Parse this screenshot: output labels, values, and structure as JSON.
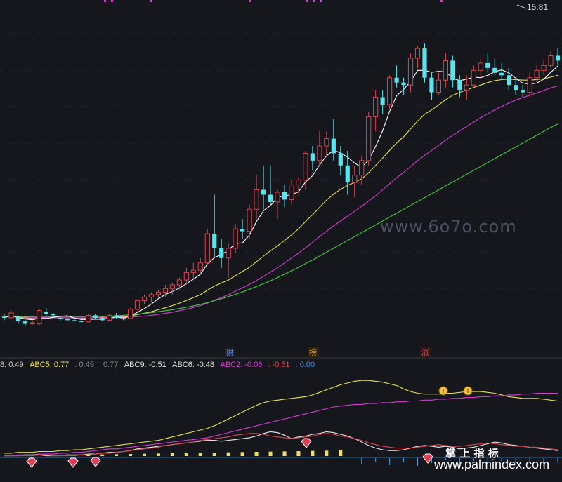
{
  "chart_data": [
    {
      "type": "candlestick",
      "title": "",
      "price_label": "15.81",
      "ylim": [
        3.0,
        16.3
      ],
      "colors": {
        "up": "#e0424d",
        "down": "#55e6f0",
        "ma5": "#ffffff",
        "ma10": "#e8e342",
        "ma20": "#d63bd6",
        "ma60": "#3dcf3d"
      },
      "ohlc": [
        [
          3.6,
          3.7,
          3.45,
          3.55
        ],
        [
          3.55,
          3.85,
          3.5,
          3.75
        ],
        [
          3.6,
          3.65,
          3.3,
          3.4
        ],
        [
          3.4,
          3.5,
          3.2,
          3.3
        ],
        [
          3.3,
          3.45,
          3.25,
          3.35
        ],
        [
          3.3,
          3.9,
          3.25,
          3.85
        ],
        [
          3.8,
          3.95,
          3.6,
          3.7
        ],
        [
          3.7,
          3.75,
          3.55,
          3.65
        ],
        [
          3.55,
          3.6,
          3.4,
          3.5
        ],
        [
          3.5,
          3.55,
          3.4,
          3.45
        ],
        [
          3.45,
          3.5,
          3.35,
          3.42
        ],
        [
          3.42,
          3.48,
          3.32,
          3.38
        ],
        [
          3.38,
          3.7,
          3.35,
          3.65
        ],
        [
          3.65,
          3.7,
          3.5,
          3.55
        ],
        [
          3.55,
          3.6,
          3.42,
          3.45
        ],
        [
          3.45,
          3.7,
          3.4,
          3.65
        ],
        [
          3.65,
          3.75,
          3.5,
          3.55
        ],
        [
          3.55,
          3.6,
          3.45,
          3.52
        ],
        [
          3.52,
          3.95,
          3.5,
          3.9
        ],
        [
          3.9,
          4.3,
          3.85,
          4.25
        ],
        [
          4.25,
          4.5,
          4.1,
          4.4
        ],
        [
          4.4,
          4.6,
          4.2,
          4.5
        ],
        [
          4.5,
          4.7,
          4.35,
          4.6
        ],
        [
          4.6,
          4.9,
          4.4,
          4.75
        ],
        [
          4.75,
          5.0,
          4.5,
          4.9
        ],
        [
          4.9,
          5.2,
          4.7,
          5.1
        ],
        [
          5.1,
          5.6,
          4.9,
          5.4
        ],
        [
          5.4,
          5.8,
          5.1,
          5.5
        ],
        [
          5.5,
          6.0,
          5.3,
          5.8
        ],
        [
          5.8,
          7.2,
          5.7,
          7.0
        ],
        [
          7.0,
          8.6,
          6.0,
          6.4
        ],
        [
          6.4,
          6.8,
          5.6,
          6.0
        ],
        [
          6.0,
          6.6,
          5.2,
          6.4
        ],
        [
          6.4,
          7.4,
          6.2,
          7.2
        ],
        [
          7.2,
          7.6,
          6.8,
          7.1
        ],
        [
          7.1,
          8.2,
          6.8,
          8.0
        ],
        [
          8.0,
          9.4,
          7.6,
          8.8
        ],
        [
          8.8,
          9.8,
          8.0,
          8.6
        ],
        [
          8.6,
          9.8,
          8.2,
          8.3
        ],
        [
          8.3,
          8.8,
          7.6,
          8.7
        ],
        [
          8.7,
          9.0,
          8.1,
          8.4
        ],
        [
          8.4,
          9.2,
          8.2,
          9.0
        ],
        [
          9.0,
          9.3,
          8.6,
          9.2
        ],
        [
          9.2,
          10.4,
          8.8,
          10.3
        ],
        [
          10.3,
          10.6,
          9.6,
          10.0
        ],
        [
          10.0,
          11.2,
          9.8,
          10.6
        ],
        [
          10.6,
          11.2,
          10.2,
          10.9
        ],
        [
          10.9,
          11.7,
          10.0,
          10.3
        ],
        [
          10.3,
          10.6,
          9.4,
          9.8
        ],
        [
          9.8,
          10.4,
          8.6,
          9.1
        ],
        [
          9.1,
          9.8,
          8.5,
          9.4
        ],
        [
          9.4,
          10.2,
          9.0,
          10.0
        ],
        [
          10.0,
          12.0,
          9.8,
          11.8
        ],
        [
          11.8,
          12.9,
          11.2,
          12.6
        ],
        [
          12.6,
          12.9,
          11.9,
          12.3
        ],
        [
          12.3,
          13.5,
          12.1,
          13.4
        ],
        [
          13.4,
          13.9,
          13.0,
          13.2
        ],
        [
          13.2,
          13.4,
          12.7,
          13.1
        ],
        [
          13.1,
          14.4,
          12.8,
          14.2
        ],
        [
          14.2,
          14.7,
          13.8,
          14.6
        ],
        [
          14.6,
          14.8,
          13.2,
          13.4
        ],
        [
          13.4,
          13.6,
          12.5,
          12.8
        ],
        [
          12.8,
          13.6,
          12.7,
          13.3
        ],
        [
          13.3,
          14.4,
          13.0,
          14.1
        ],
        [
          14.1,
          14.3,
          13.0,
          13.3
        ],
        [
          13.3,
          13.5,
          12.6,
          12.9
        ],
        [
          12.9,
          13.5,
          12.5,
          13.1
        ],
        [
          13.1,
          13.9,
          13.0,
          13.7
        ],
        [
          13.7,
          14.2,
          13.4,
          14.0
        ],
        [
          14.0,
          14.4,
          13.6,
          13.8
        ],
        [
          13.8,
          14.2,
          13.5,
          13.6
        ],
        [
          13.6,
          14.0,
          13.3,
          13.5
        ],
        [
          13.5,
          13.8,
          12.9,
          13.1
        ],
        [
          13.1,
          13.3,
          12.7,
          12.9
        ],
        [
          12.9,
          13.1,
          12.6,
          12.8
        ],
        [
          12.8,
          13.6,
          12.6,
          13.4
        ],
        [
          13.4,
          13.9,
          13.2,
          13.7
        ],
        [
          13.7,
          14.1,
          13.5,
          13.9
        ],
        [
          13.9,
          14.5,
          13.8,
          14.3
        ],
        [
          14.3,
          14.6,
          13.9,
          14.1
        ]
      ],
      "ma_series": [
        {
          "key": "ma10",
          "values": [
            3.6,
            3.6,
            3.58,
            3.55,
            3.52,
            3.52,
            3.54,
            3.55,
            3.55,
            3.55,
            3.54,
            3.53,
            3.54,
            3.55,
            3.56,
            3.57,
            3.58,
            3.6,
            3.63,
            3.68,
            3.74,
            3.8,
            3.88,
            3.96,
            4.05,
            4.15,
            4.26,
            4.38,
            4.5,
            4.68,
            4.85,
            4.98,
            5.1,
            5.28,
            5.45,
            5.62,
            5.85,
            6.08,
            6.3,
            6.5,
            6.72,
            6.95,
            7.2,
            7.5,
            7.78,
            8.08,
            8.38,
            8.62,
            8.82,
            8.98,
            9.1,
            9.25,
            9.5,
            9.8,
            10.1,
            10.42,
            10.72,
            10.98,
            11.3,
            11.62,
            11.9,
            12.08,
            12.28,
            12.5,
            12.68,
            12.8,
            12.9,
            13.0,
            13.1,
            13.2,
            13.28,
            13.32,
            13.34,
            13.32,
            13.3,
            13.3,
            13.32,
            13.36,
            13.42,
            13.5
          ]
        },
        {
          "key": "ma20",
          "values": [
            3.6,
            3.6,
            3.59,
            3.58,
            3.57,
            3.56,
            3.56,
            3.55,
            3.55,
            3.55,
            3.55,
            3.55,
            3.55,
            3.55,
            3.55,
            3.56,
            3.56,
            3.57,
            3.58,
            3.6,
            3.62,
            3.65,
            3.69,
            3.73,
            3.78,
            3.84,
            3.9,
            3.97,
            4.05,
            4.15,
            4.27,
            4.38,
            4.5,
            4.64,
            4.78,
            4.92,
            5.08,
            5.25,
            5.42,
            5.6,
            5.8,
            6.0,
            6.2,
            6.42,
            6.65,
            6.88,
            7.1,
            7.32,
            7.52,
            7.72,
            7.92,
            8.12,
            8.34,
            8.56,
            8.8,
            9.05,
            9.3,
            9.52,
            9.75,
            10.0,
            10.22,
            10.42,
            10.62,
            10.84,
            11.04,
            11.22,
            11.4,
            11.58,
            11.76,
            11.92,
            12.08,
            12.22,
            12.36,
            12.48,
            12.58,
            12.68,
            12.78,
            12.88,
            12.98,
            13.06
          ]
        },
        {
          "key": "ma60",
          "values": [
            3.6,
            3.6,
            3.6,
            3.6,
            3.6,
            3.6,
            3.6,
            3.6,
            3.6,
            3.6,
            3.6,
            3.6,
            3.6,
            3.6,
            3.6,
            3.62,
            3.63,
            3.65,
            3.67,
            3.7,
            3.73,
            3.76,
            3.8,
            3.84,
            3.88,
            3.93,
            3.98,
            4.04,
            4.1,
            4.17,
            4.25,
            4.33,
            4.42,
            4.51,
            4.61,
            4.72,
            4.83,
            4.95,
            5.07,
            5.2,
            5.34,
            5.48,
            5.62,
            5.77,
            5.92,
            6.08,
            6.24,
            6.4,
            6.56,
            6.72,
            6.88,
            7.04,
            7.2,
            7.36,
            7.52,
            7.68,
            7.84,
            8.0,
            8.16,
            8.32,
            8.48,
            8.64,
            8.8,
            8.96,
            9.12,
            9.28,
            9.44,
            9.6,
            9.76,
            9.92,
            10.08,
            10.24,
            10.4,
            10.56,
            10.72,
            10.88,
            11.04,
            11.2,
            11.36,
            11.5
          ]
        }
      ]
    },
    {
      "type": "line",
      "ylim": [
        0,
        1
      ],
      "series": [
        {
          "name": "ABC5",
          "color": "#e8e342",
          "values": [
            0.05,
            0.05,
            0.06,
            0.06,
            0.06,
            0.07,
            0.07,
            0.07,
            0.08,
            0.08,
            0.09,
            0.09,
            0.1,
            0.11,
            0.12,
            0.13,
            0.14,
            0.15,
            0.16,
            0.17,
            0.18,
            0.19,
            0.2,
            0.22,
            0.24,
            0.26,
            0.28,
            0.3,
            0.32,
            0.34,
            0.37,
            0.41,
            0.45,
            0.49,
            0.53,
            0.57,
            0.61,
            0.64,
            0.66,
            0.67,
            0.68,
            0.69,
            0.7,
            0.71,
            0.73,
            0.76,
            0.79,
            0.82,
            0.85,
            0.87,
            0.89,
            0.9,
            0.9,
            0.89,
            0.88,
            0.86,
            0.84,
            0.8,
            0.77,
            0.75,
            0.74,
            0.74,
            0.74,
            0.75,
            0.75,
            0.76,
            0.77,
            0.77,
            0.77,
            0.76,
            0.75,
            0.73,
            0.71,
            0.7,
            0.69,
            0.69,
            0.69,
            0.68,
            0.67,
            0.66
          ]
        },
        {
          "name": "ABC2",
          "color": "#d63bd6",
          "values": [
            0.02,
            0.02,
            0.03,
            0.03,
            0.03,
            0.04,
            0.04,
            0.04,
            0.05,
            0.05,
            0.06,
            0.06,
            0.07,
            0.08,
            0.09,
            0.1,
            0.1,
            0.11,
            0.12,
            0.13,
            0.14,
            0.15,
            0.16,
            0.17,
            0.18,
            0.19,
            0.2,
            0.21,
            0.22,
            0.23,
            0.25,
            0.27,
            0.29,
            0.31,
            0.33,
            0.35,
            0.37,
            0.39,
            0.41,
            0.43,
            0.45,
            0.47,
            0.49,
            0.51,
            0.53,
            0.55,
            0.57,
            0.59,
            0.6,
            0.61,
            0.62,
            0.62,
            0.63,
            0.63,
            0.64,
            0.64,
            0.65,
            0.65,
            0.66,
            0.66,
            0.67,
            0.67,
            0.68,
            0.68,
            0.69,
            0.69,
            0.7,
            0.7,
            0.71,
            0.71,
            0.72,
            0.72,
            0.73,
            0.73,
            0.74,
            0.74,
            0.75,
            0.75,
            0.75,
            0.75
          ]
        },
        {
          "name": "ABC9",
          "color": "#e8e8e8",
          "values": [
            0.02,
            0.02,
            0.02,
            0.03,
            0.03,
            0.03,
            0.02,
            0.02,
            0.02,
            0.03,
            0.03,
            0.03,
            0.04,
            0.04,
            0.05,
            0.06,
            0.06,
            0.07,
            0.08,
            0.1,
            0.11,
            0.12,
            0.13,
            0.14,
            0.15,
            0.16,
            0.17,
            0.18,
            0.19,
            0.2,
            0.2,
            0.19,
            0.2,
            0.21,
            0.22,
            0.23,
            0.25,
            0.28,
            0.3,
            0.29,
            0.26,
            0.22,
            0.24,
            0.25,
            0.27,
            0.28,
            0.3,
            0.29,
            0.27,
            0.25,
            0.22,
            0.18,
            0.14,
            0.11,
            0.09,
            0.08,
            0.08,
            0.09,
            0.11,
            0.13,
            0.14,
            0.13,
            0.12,
            0.13,
            0.12,
            0.1,
            0.11,
            0.12,
            0.14,
            0.16,
            0.18,
            0.17,
            0.15,
            0.14,
            0.13,
            0.12,
            0.11,
            0.1,
            0.09,
            0.08
          ]
        },
        {
          "name": "ABC6",
          "color": "#e0424d",
          "values": [
            0.02,
            0.02,
            0.02,
            0.02,
            0.02,
            0.03,
            0.03,
            0.02,
            0.02,
            0.02,
            0.02,
            0.03,
            0.03,
            0.04,
            0.05,
            0.05,
            0.06,
            0.07,
            0.08,
            0.09,
            0.1,
            0.11,
            0.12,
            0.14,
            0.15,
            0.16,
            0.17,
            0.18,
            0.2,
            0.21,
            0.22,
            0.23,
            0.24,
            0.26,
            0.27,
            0.28,
            0.28,
            0.27,
            0.25,
            0.24,
            0.23,
            0.22,
            0.23,
            0.24,
            0.25,
            0.27,
            0.28,
            0.27,
            0.25,
            0.24,
            0.22,
            0.2,
            0.17,
            0.15,
            0.13,
            0.12,
            0.11,
            0.11,
            0.11,
            0.12,
            0.13,
            0.14,
            0.15,
            0.14,
            0.13,
            0.13,
            0.14,
            0.15,
            0.16,
            0.17,
            0.16,
            0.15,
            0.14,
            0.13,
            0.13,
            0.12,
            0.12,
            0.11,
            0.1,
            0.09
          ]
        }
      ]
    }
  ],
  "markers": {
    "cai": "财",
    "bang": "榜",
    "zhang": "涨"
  },
  "indicator_header": {
    "v1_label": "8:",
    "v1": "0.49",
    "abc5_label": "ABC5:",
    "abc5": "0.77",
    "sep1": ":",
    "v2": "0.49",
    "sep2": ":",
    "v3": "0.77",
    "abc9_label": "ABC9:",
    "abc9": "-0.51",
    "abc6_label": "ABC6:",
    "abc6": "-0.48",
    "abc2_label": "ABC2:",
    "abc2": "-0.06",
    "sep3": ":",
    "v4": "-0.51",
    "sep4": ":",
    "v5": "0.00"
  },
  "watermarks": {
    "site1": "www.6o7o.com",
    "site2": "www.palmindex.com",
    "brand": "掌 上 指 标"
  }
}
